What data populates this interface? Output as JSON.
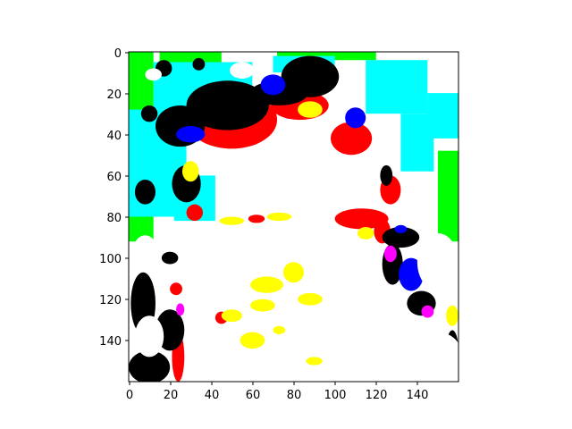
{
  "chart_data": {
    "type": "heatmap",
    "title": "",
    "xlabel": "",
    "ylabel": "",
    "xlim": [
      0,
      160
    ],
    "ylim": [
      160,
      0
    ],
    "y_axis_inverted": true,
    "grid": false,
    "legend": "none",
    "x_ticks": [
      "0",
      "20",
      "40",
      "60",
      "80",
      "100",
      "120",
      "140"
    ],
    "y_ticks": [
      "0",
      "20",
      "40",
      "60",
      "80",
      "100",
      "120",
      "140"
    ],
    "colors": {
      "white": "#ffffff",
      "yellow": "#ffff00",
      "red": "#ff0000",
      "black": "#000000",
      "blue": "#0000ff",
      "cyan": "#00ffff",
      "green": "#00ff00",
      "magenta": "#ff00ff"
    },
    "regions": [
      {
        "color": "green",
        "kind": "rect",
        "x": [
          0,
          12
        ],
        "y": [
          0,
          35
        ]
      },
      {
        "color": "green",
        "kind": "rect",
        "x": [
          0,
          12
        ],
        "y": [
          60,
          92
        ]
      },
      {
        "color": "green",
        "kind": "rect",
        "x": [
          15,
          45
        ],
        "y": [
          0,
          8
        ]
      },
      {
        "color": "green",
        "kind": "rect",
        "x": [
          72,
          120
        ],
        "y": [
          0,
          4
        ]
      },
      {
        "color": "green",
        "kind": "rect",
        "x": [
          150,
          160
        ],
        "y": [
          48,
          92
        ]
      },
      {
        "color": "cyan",
        "kind": "rect",
        "x": [
          0,
          28
        ],
        "y": [
          28,
          80
        ]
      },
      {
        "color": "cyan",
        "kind": "rect",
        "x": [
          12,
          60
        ],
        "y": [
          5,
          28
        ]
      },
      {
        "color": "cyan",
        "kind": "rect",
        "x": [
          70,
          100
        ],
        "y": [
          2,
          10
        ]
      },
      {
        "color": "cyan",
        "kind": "rect",
        "x": [
          115,
          145
        ],
        "y": [
          4,
          30
        ]
      },
      {
        "color": "cyan",
        "kind": "rect",
        "x": [
          132,
          148
        ],
        "y": [
          30,
          58
        ]
      },
      {
        "color": "cyan",
        "kind": "rect",
        "x": [
          22,
          42
        ],
        "y": [
          60,
          82
        ]
      },
      {
        "color": "cyan",
        "kind": "rect",
        "x": [
          145,
          160
        ],
        "y": [
          20,
          42
        ]
      },
      {
        "color": "red",
        "kind": "ellipse",
        "cx": 50,
        "cy": 33,
        "rx": 22,
        "ry": 14
      },
      {
        "color": "red",
        "kind": "ellipse",
        "cx": 83,
        "cy": 26,
        "rx": 14,
        "ry": 7
      },
      {
        "color": "red",
        "kind": "ellipse",
        "cx": 108,
        "cy": 42,
        "rx": 10,
        "ry": 8
      },
      {
        "color": "red",
        "kind": "ellipse",
        "cx": 113,
        "cy": 81,
        "rx": 13,
        "ry": 5
      },
      {
        "color": "red",
        "kind": "ellipse",
        "cx": 123,
        "cy": 87,
        "rx": 4,
        "ry": 6
      },
      {
        "color": "red",
        "kind": "ellipse",
        "cx": 127,
        "cy": 67,
        "rx": 5,
        "ry": 7
      },
      {
        "color": "red",
        "kind": "ellipse",
        "cx": 62,
        "cy": 81,
        "rx": 4,
        "ry": 2
      },
      {
        "color": "red",
        "kind": "ellipse",
        "cx": 32,
        "cy": 78,
        "rx": 4,
        "ry": 4
      },
      {
        "color": "red",
        "kind": "ellipse",
        "cx": 24,
        "cy": 148,
        "rx": 3,
        "ry": 12
      },
      {
        "color": "red",
        "kind": "ellipse",
        "cx": 23,
        "cy": 115,
        "rx": 3,
        "ry": 3
      },
      {
        "color": "red",
        "kind": "ellipse",
        "cx": 45,
        "cy": 129,
        "rx": 3,
        "ry": 3
      },
      {
        "color": "black",
        "kind": "ellipse",
        "cx": 48,
        "cy": 26,
        "rx": 20,
        "ry": 12
      },
      {
        "color": "black",
        "kind": "ellipse",
        "cx": 25,
        "cy": 36,
        "rx": 12,
        "ry": 10
      },
      {
        "color": "black",
        "kind": "ellipse",
        "cx": 88,
        "cy": 12,
        "rx": 14,
        "ry": 10
      },
      {
        "color": "black",
        "kind": "ellipse",
        "cx": 73,
        "cy": 20,
        "rx": 14,
        "ry": 6
      },
      {
        "color": "black",
        "kind": "ellipse",
        "cx": 17,
        "cy": 8,
        "rx": 4,
        "ry": 4
      },
      {
        "color": "black",
        "kind": "ellipse",
        "cx": 34,
        "cy": 6,
        "rx": 3,
        "ry": 3
      },
      {
        "color": "black",
        "kind": "ellipse",
        "cx": 10,
        "cy": 30,
        "rx": 4,
        "ry": 4
      },
      {
        "color": "black",
        "kind": "ellipse",
        "cx": 28,
        "cy": 64,
        "rx": 7,
        "ry": 9
      },
      {
        "color": "black",
        "kind": "ellipse",
        "cx": 8,
        "cy": 68,
        "rx": 5,
        "ry": 6
      },
      {
        "color": "black",
        "kind": "ellipse",
        "cx": 7,
        "cy": 122,
        "rx": 6,
        "ry": 15
      },
      {
        "color": "black",
        "kind": "ellipse",
        "cx": 20,
        "cy": 100,
        "rx": 4,
        "ry": 3
      },
      {
        "color": "black",
        "kind": "ellipse",
        "cx": 20,
        "cy": 135,
        "rx": 7,
        "ry": 10
      },
      {
        "color": "black",
        "kind": "ellipse",
        "cx": 10,
        "cy": 153,
        "rx": 10,
        "ry": 8
      },
      {
        "color": "black",
        "kind": "ellipse",
        "cx": 125,
        "cy": 60,
        "rx": 3,
        "ry": 5
      },
      {
        "color": "black",
        "kind": "ellipse",
        "cx": 132,
        "cy": 90,
        "rx": 9,
        "ry": 5
      },
      {
        "color": "black",
        "kind": "ellipse",
        "cx": 128,
        "cy": 103,
        "rx": 5,
        "ry": 10
      },
      {
        "color": "black",
        "kind": "ellipse",
        "cx": 142,
        "cy": 122,
        "rx": 7,
        "ry": 6
      },
      {
        "color": "black",
        "kind": "ellipse",
        "cx": 157,
        "cy": 145,
        "rx": 3,
        "ry": 10
      },
      {
        "color": "blue",
        "kind": "ellipse",
        "cx": 30,
        "cy": 40,
        "rx": 7,
        "ry": 4
      },
      {
        "color": "blue",
        "kind": "ellipse",
        "cx": 70,
        "cy": 16,
        "rx": 6,
        "ry": 5
      },
      {
        "color": "blue",
        "kind": "ellipse",
        "cx": 110,
        "cy": 32,
        "rx": 5,
        "ry": 5
      },
      {
        "color": "blue",
        "kind": "ellipse",
        "cx": 137,
        "cy": 108,
        "rx": 6,
        "ry": 8
      },
      {
        "color": "blue",
        "kind": "ellipse",
        "cx": 132,
        "cy": 86,
        "rx": 3,
        "ry": 2
      },
      {
        "color": "magenta",
        "kind": "ellipse",
        "cx": 127,
        "cy": 98,
        "rx": 3,
        "ry": 4
      },
      {
        "color": "magenta",
        "kind": "ellipse",
        "cx": 145,
        "cy": 126,
        "rx": 3,
        "ry": 3
      },
      {
        "color": "magenta",
        "kind": "ellipse",
        "cx": 25,
        "cy": 125,
        "rx": 2,
        "ry": 3
      },
      {
        "color": "yellow",
        "kind": "ellipse",
        "cx": 88,
        "cy": 28,
        "rx": 6,
        "ry": 4
      },
      {
        "color": "yellow",
        "kind": "ellipse",
        "cx": 73,
        "cy": 80,
        "rx": 6,
        "ry": 2
      },
      {
        "color": "yellow",
        "kind": "ellipse",
        "cx": 50,
        "cy": 82,
        "rx": 6,
        "ry": 2
      },
      {
        "color": "yellow",
        "kind": "ellipse",
        "cx": 115,
        "cy": 88,
        "rx": 4,
        "ry": 3
      },
      {
        "color": "yellow",
        "kind": "ellipse",
        "cx": 67,
        "cy": 113,
        "rx": 8,
        "ry": 4
      },
      {
        "color": "yellow",
        "kind": "ellipse",
        "cx": 80,
        "cy": 107,
        "rx": 5,
        "ry": 5
      },
      {
        "color": "yellow",
        "kind": "ellipse",
        "cx": 88,
        "cy": 120,
        "rx": 6,
        "ry": 3
      },
      {
        "color": "yellow",
        "kind": "ellipse",
        "cx": 65,
        "cy": 123,
        "rx": 6,
        "ry": 3
      },
      {
        "color": "yellow",
        "kind": "ellipse",
        "cx": 50,
        "cy": 128,
        "rx": 5,
        "ry": 3
      },
      {
        "color": "yellow",
        "kind": "ellipse",
        "cx": 60,
        "cy": 140,
        "rx": 6,
        "ry": 4
      },
      {
        "color": "yellow",
        "kind": "ellipse",
        "cx": 73,
        "cy": 135,
        "rx": 3,
        "ry": 2
      },
      {
        "color": "yellow",
        "kind": "ellipse",
        "cx": 90,
        "cy": 150,
        "rx": 4,
        "ry": 2
      },
      {
        "color": "yellow",
        "kind": "ellipse",
        "cx": 8,
        "cy": 100,
        "rx": 4,
        "ry": 3
      },
      {
        "color": "yellow",
        "kind": "ellipse",
        "cx": 30,
        "cy": 58,
        "rx": 4,
        "ry": 5
      },
      {
        "color": "yellow",
        "kind": "ellipse",
        "cx": 157,
        "cy": 128,
        "rx": 3,
        "ry": 5
      },
      {
        "color": "white",
        "kind": "ellipse",
        "cx": 8,
        "cy": 97,
        "rx": 6,
        "ry": 8
      },
      {
        "color": "white",
        "kind": "ellipse",
        "cx": 10,
        "cy": 138,
        "rx": 7,
        "ry": 10
      },
      {
        "color": "white",
        "kind": "ellipse",
        "cx": 12,
        "cy": 11,
        "rx": 4,
        "ry": 3
      },
      {
        "color": "white",
        "kind": "ellipse",
        "cx": 55,
        "cy": 9,
        "rx": 6,
        "ry": 4
      },
      {
        "color": "white",
        "kind": "ellipse",
        "cx": 150,
        "cy": 102,
        "rx": 10,
        "ry": 14
      },
      {
        "color": "white",
        "kind": "ellipse",
        "cx": 150,
        "cy": 148,
        "rx": 12,
        "ry": 12
      }
    ]
  }
}
